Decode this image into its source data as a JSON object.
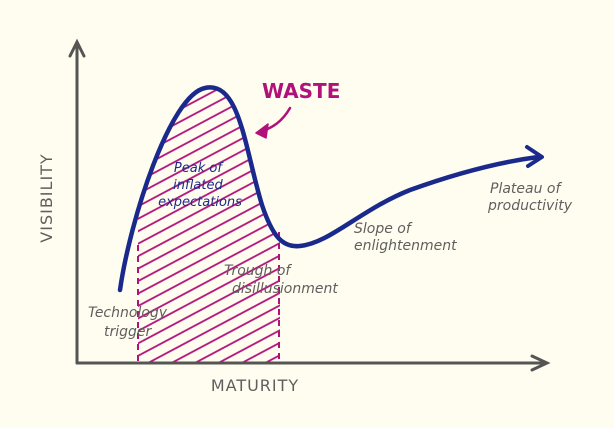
{
  "title": "",
  "axes": {
    "x_label": "MATURITY",
    "y_label": "VISIBILITY"
  },
  "phases": {
    "trigger": [
      "Technology",
      "trigger"
    ],
    "peak": [
      "Peak of",
      "inflated",
      "expectations"
    ],
    "trough": [
      "Trough of",
      "disillusionment"
    ],
    "slope": [
      "Slope of",
      "enlightenment"
    ],
    "plateau": [
      "Plateau of",
      "productivity"
    ]
  },
  "annotation": {
    "waste": "WASTE"
  },
  "colors": {
    "background": "#fffdf0",
    "curve": "#1a2a8c",
    "hatch": "#b0127a",
    "axis": "#555555",
    "text": "#5f5f5f"
  }
}
